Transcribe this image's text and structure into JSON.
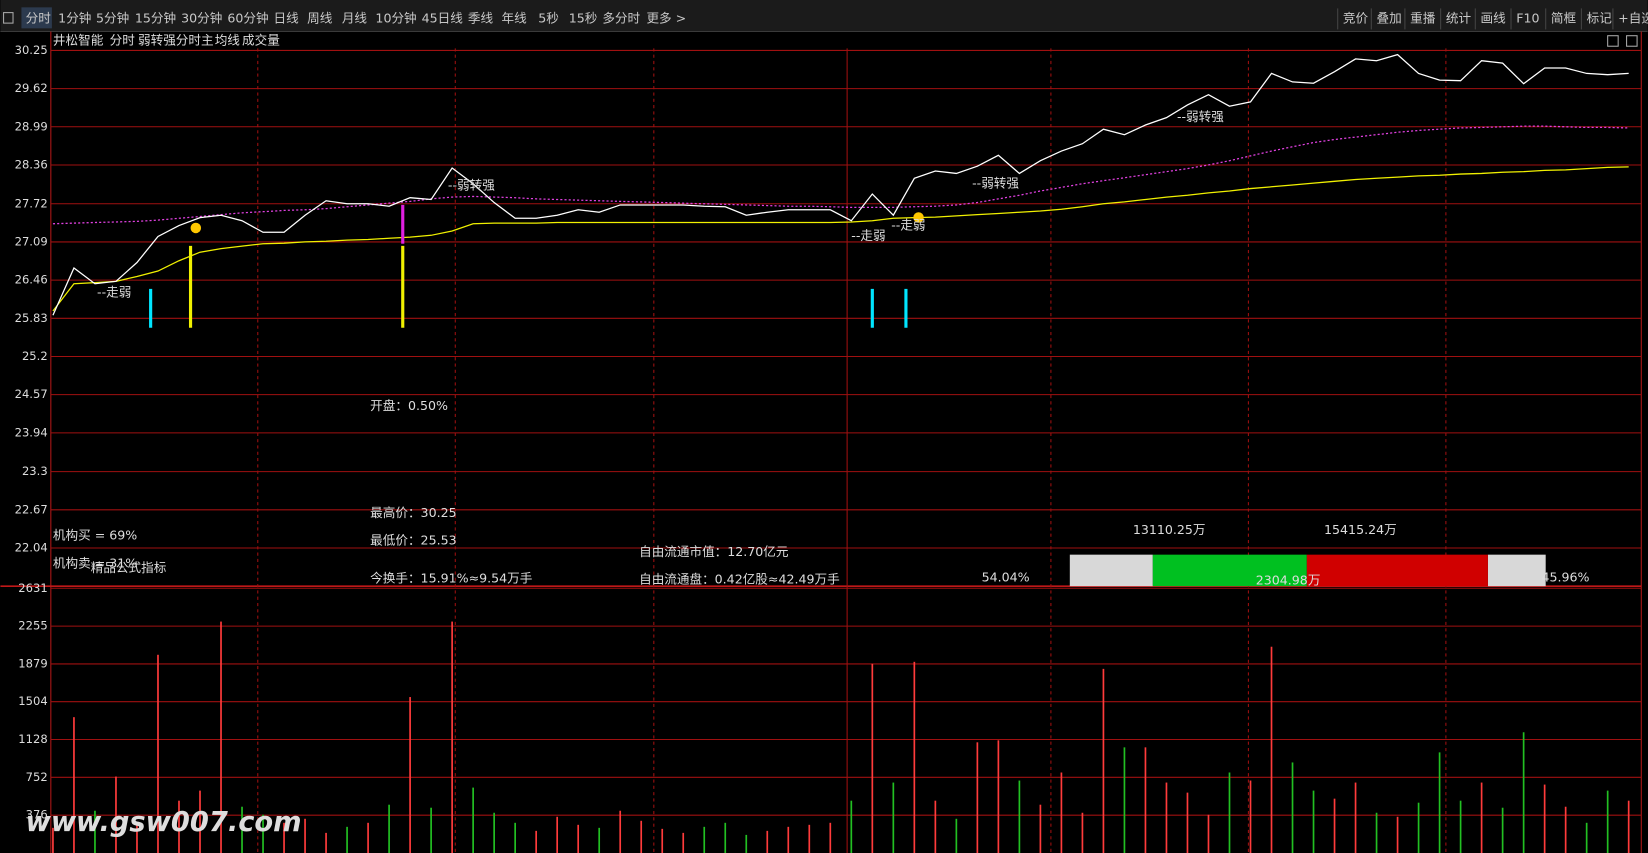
{
  "toolbar": {
    "left_tabs": [
      "分时",
      "1分钟",
      "5分钟",
      "15分钟",
      "30分钟",
      "60分钟",
      "日线",
      "周线",
      "月线",
      "10分钟",
      "45日线",
      "季线",
      "年线",
      "5秒",
      "15秒",
      "多分时",
      "更多 >"
    ],
    "right_tabs": [
      "竞价",
      "叠加",
      "重播",
      "统计",
      "画线",
      "F10",
      "简框",
      "标记",
      "+自选"
    ]
  },
  "header": {
    "stock": "井松智能",
    "mode": "分时",
    "indicator": "弱转强分时主",
    "avg_label": "均线",
    "vol_label": "成交量"
  },
  "chart_data": [
    {
      "type": "line",
      "prev_close": 25.83,
      "ylim": [
        21.41,
        30.25
      ],
      "yticks": [
        30.25,
        29.62,
        28.99,
        28.36,
        27.72,
        27.09,
        26.46,
        25.83,
        25.2,
        24.57,
        23.94,
        23.3,
        22.67,
        22.04
      ],
      "up_color": "#ff3b3b",
      "down_color": "#22d622",
      "flat_color": "#e8e8e8",
      "grid": true,
      "series": [
        {
          "color": "#ffffff",
          "dashed": false,
          "values": [
            25.88,
            26.66,
            26.4,
            26.44,
            26.75,
            27.18,
            27.36,
            27.49,
            27.53,
            27.44,
            27.25,
            27.25,
            27.53,
            27.77,
            27.72,
            27.72,
            27.68,
            27.82,
            27.79,
            28.31,
            28.05,
            27.74,
            27.48,
            27.48,
            27.53,
            27.62,
            27.58,
            27.7,
            27.7,
            27.7,
            27.7,
            27.68,
            27.67,
            27.53,
            27.58,
            27.62,
            27.62,
            27.62,
            27.44,
            27.88,
            27.53,
            28.14,
            28.26,
            28.22,
            28.34,
            28.52,
            28.22,
            28.43,
            28.59,
            28.71,
            28.95,
            28.86,
            29.02,
            29.14,
            29.35,
            29.52,
            29.33,
            29.4,
            29.87,
            29.73,
            29.71,
            29.9,
            30.11,
            30.08,
            30.18,
            29.87,
            29.76,
            29.75,
            30.08,
            30.04,
            29.7,
            29.96,
            29.96,
            29.87,
            29.85,
            29.87
          ]
        },
        {
          "color": "#f0f000",
          "dashed": false,
          "values": [
            25.95,
            26.4,
            26.42,
            26.44,
            26.52,
            26.61,
            26.78,
            26.92,
            26.98,
            27.02,
            27.06,
            27.07,
            27.09,
            27.1,
            27.12,
            27.13,
            27.15,
            27.17,
            27.2,
            27.27,
            27.39,
            27.4,
            27.4,
            27.4,
            27.41,
            27.41,
            27.41,
            27.41,
            27.41,
            27.41,
            27.41,
            27.41,
            27.41,
            27.41,
            27.41,
            27.41,
            27.41,
            27.41,
            27.42,
            27.44,
            27.48,
            27.49,
            27.5,
            27.52,
            27.54,
            27.56,
            27.58,
            27.6,
            27.63,
            27.67,
            27.72,
            27.75,
            27.79,
            27.83,
            27.86,
            27.9,
            27.93,
            27.97,
            28.0,
            28.03,
            28.06,
            28.09,
            28.12,
            28.14,
            28.16,
            28.18,
            28.19,
            28.21,
            28.22,
            28.24,
            28.25,
            28.27,
            28.28,
            28.3,
            28.32,
            28.33
          ]
        },
        {
          "color": "#e040e0",
          "dashed": true,
          "values": [
            27.39,
            27.4,
            27.41,
            27.42,
            27.43,
            27.45,
            27.48,
            27.51,
            27.54,
            27.57,
            27.59,
            27.61,
            27.62,
            27.64,
            27.67,
            27.7,
            27.73,
            27.76,
            27.8,
            27.83,
            27.84,
            27.83,
            27.82,
            27.8,
            27.79,
            27.78,
            27.77,
            27.76,
            27.75,
            27.74,
            27.73,
            27.72,
            27.71,
            27.7,
            27.69,
            27.68,
            27.68,
            27.67,
            27.66,
            27.66,
            27.66,
            27.67,
            27.68,
            27.7,
            27.74,
            27.8,
            27.86,
            27.93,
            27.99,
            28.05,
            28.1,
            28.15,
            28.2,
            28.25,
            28.3,
            28.36,
            28.43,
            28.51,
            28.59,
            28.66,
            28.73,
            28.78,
            28.82,
            28.86,
            28.9,
            28.93,
            28.95,
            28.97,
            28.98,
            28.99,
            29.0,
            29.0,
            28.99,
            28.98,
            28.98,
            28.97
          ]
        }
      ]
    },
    {
      "type": "bar",
      "ylim": [
        0,
        2631
      ],
      "yticks": [
        2631,
        2255,
        1879,
        1504,
        1128,
        752,
        376
      ],
      "tick_color": "#ff3b3b",
      "up_color": "#ff3b3b",
      "down_color": "#22c022",
      "values": [
        250,
        1350,
        420,
        760,
        300,
        1970,
        520,
        620,
        2300,
        460,
        380,
        300,
        340,
        200,
        260,
        300,
        480,
        1550,
        450,
        2300,
        650,
        400,
        300,
        220,
        360,
        280,
        250,
        420,
        320,
        240,
        200,
        260,
        300,
        180,
        220,
        260,
        280,
        300,
        520,
        1880,
        700,
        1900,
        520,
        340,
        1100,
        1120,
        720,
        480,
        800,
        400,
        1830,
        1050,
        1050,
        700,
        600,
        380,
        800,
        720,
        2050,
        900,
        620,
        540,
        700,
        400,
        360,
        500,
        1000,
        520,
        700,
        450,
        1200,
        680,
        460,
        300,
        620,
        520
      ]
    }
  ],
  "annotations": [
    "--弱转强",
    "--弱转强",
    "--弱转强",
    "--走弱",
    "--走弱",
    "--走弱"
  ],
  "info": {
    "open": "开盘：0.50%",
    "high": "最高价：30.25",
    "low": "最低价：25.53",
    "turnover": "今换手：15.91%≈9.54万手",
    "float_value": "自由流通市值：12.70亿元",
    "float_shares": "自由流通盘：0.42亿股≈42.49万手"
  },
  "institution": {
    "buy": "机构买 = 69%",
    "sell": "机构卖 = 31%",
    "formula": "精品公式指标"
  },
  "flow": {
    "buy": {
      "value": 13110.25,
      "label": "13110.25万"
    },
    "sell": {
      "value": 15415.24,
      "label": "15415.24万"
    },
    "net": "2304.98万",
    "sell_pct": "54.04%",
    "buy_pct": "45.96%"
  },
  "watermark": "www.gsw007.com"
}
